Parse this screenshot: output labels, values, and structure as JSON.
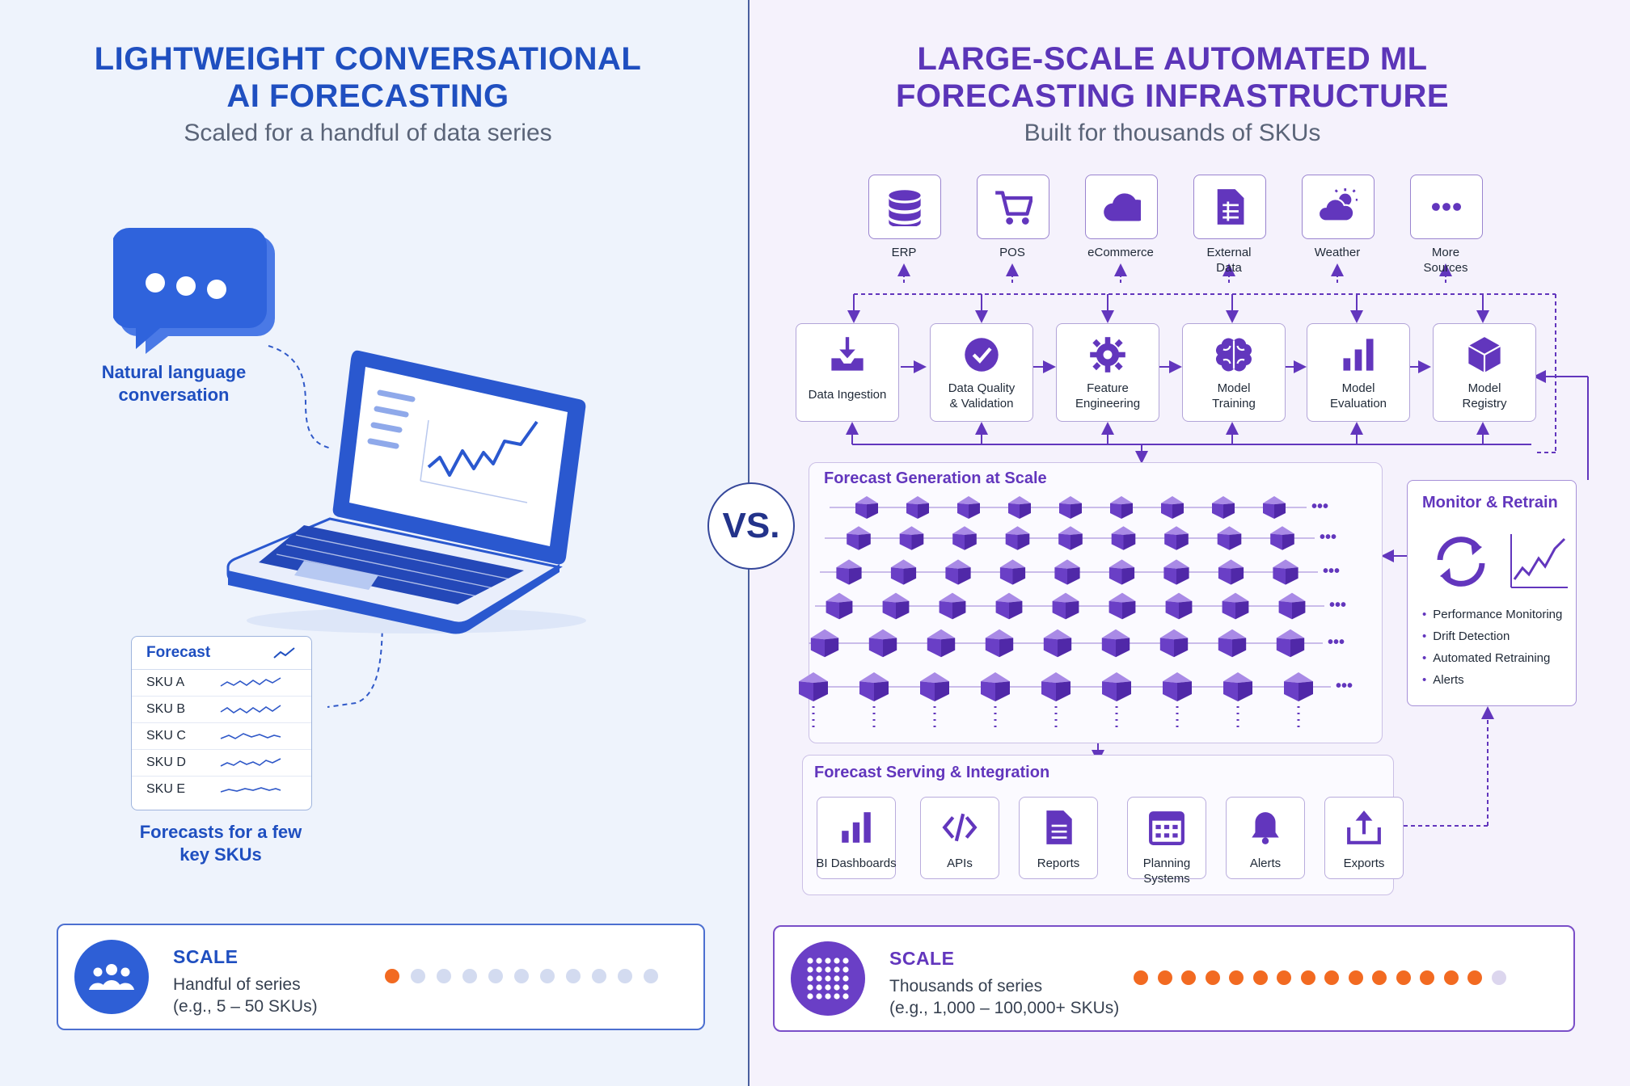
{
  "left": {
    "title_line1": "LIGHTWEIGHT CONVERSATIONAL",
    "title_line2": "AI FORECASTING",
    "subtitle": "Scaled for a handful of data series",
    "chat_label_line1": "Natural language",
    "chat_label_line2": "conversation",
    "forecast_card": {
      "title": "Forecast",
      "rows": [
        "SKU A",
        "SKU B",
        "SKU C",
        "SKU D",
        "SKU E"
      ]
    },
    "forecast_label_line1": "Forecasts for a few",
    "forecast_label_line2": "key SKUs",
    "scale": {
      "title": "SCALE",
      "line1": "Handful of series",
      "line2": "(e.g., 5 – 50 SKUs)",
      "filled_dots": 1,
      "total_dots": 11
    }
  },
  "vs_label": "VS.",
  "right": {
    "title_line1": "LARGE-SCALE AUTOMATED ML",
    "title_line2": "FORECASTING INFRASTRUCTURE",
    "subtitle": "Built for thousands of SKUs",
    "sources": [
      {
        "line1": "ERP",
        "line2": "",
        "icon": "database-icon"
      },
      {
        "line1": "POS",
        "line2": "",
        "icon": "cart-icon"
      },
      {
        "line1": "eCommerce",
        "line2": "",
        "icon": "cloud-icon"
      },
      {
        "line1": "External",
        "line2": "Data",
        "icon": "document-icon"
      },
      {
        "line1": "Weather",
        "line2": "",
        "icon": "weather-icon"
      },
      {
        "line1": "More",
        "line2": "Sources",
        "icon": "more-icon"
      }
    ],
    "pipeline": [
      {
        "line1": "Data Ingestion",
        "line2": "",
        "icon": "inbox-download-icon"
      },
      {
        "line1": "Data Quality",
        "line2": "& Validation",
        "icon": "check-circle-icon"
      },
      {
        "line1": "Feature",
        "line2": "Engineering",
        "icon": "gear-icon"
      },
      {
        "line1": "Model",
        "line2": "Training",
        "icon": "brain-icon"
      },
      {
        "line1": "Model",
        "line2": "Evaluation",
        "icon": "bar-chart-icon"
      },
      {
        "line1": "Model",
        "line2": "Registry",
        "icon": "cube-icon"
      }
    ],
    "forecast_generation_title": "Forecast Generation at Scale",
    "monitor": {
      "title": "Monitor & Retrain",
      "items": [
        "Performance Monitoring",
        "Drift Detection",
        "Automated Retraining",
        "Alerts"
      ]
    },
    "serving_title": "Forecast Serving & Integration",
    "serving": [
      {
        "line1": "BI Dashboards",
        "line2": "",
        "icon": "bar-chart-icon"
      },
      {
        "line1": "APIs",
        "line2": "",
        "icon": "code-icon"
      },
      {
        "line1": "Reports",
        "line2": "",
        "icon": "report-icon"
      },
      {
        "line1": "Planning",
        "line2": "Systems",
        "icon": "calendar-icon"
      },
      {
        "line1": "Alerts",
        "line2": "",
        "icon": "bell-icon"
      },
      {
        "line1": "Exports",
        "line2": "",
        "icon": "export-icon"
      }
    ],
    "scale": {
      "title": "SCALE",
      "line1": "Thousands of series",
      "line2": "(e.g., 1,000 – 100,000+ SKUs)",
      "filled_dots": 15,
      "total_dots": 16
    }
  },
  "colors": {
    "blue": "#1f4fc0",
    "purple": "#6236bd",
    "orange": "#f26a21",
    "dot_empty_left": "#d3dbf0",
    "dot_empty_right": "#dcd6ee"
  }
}
